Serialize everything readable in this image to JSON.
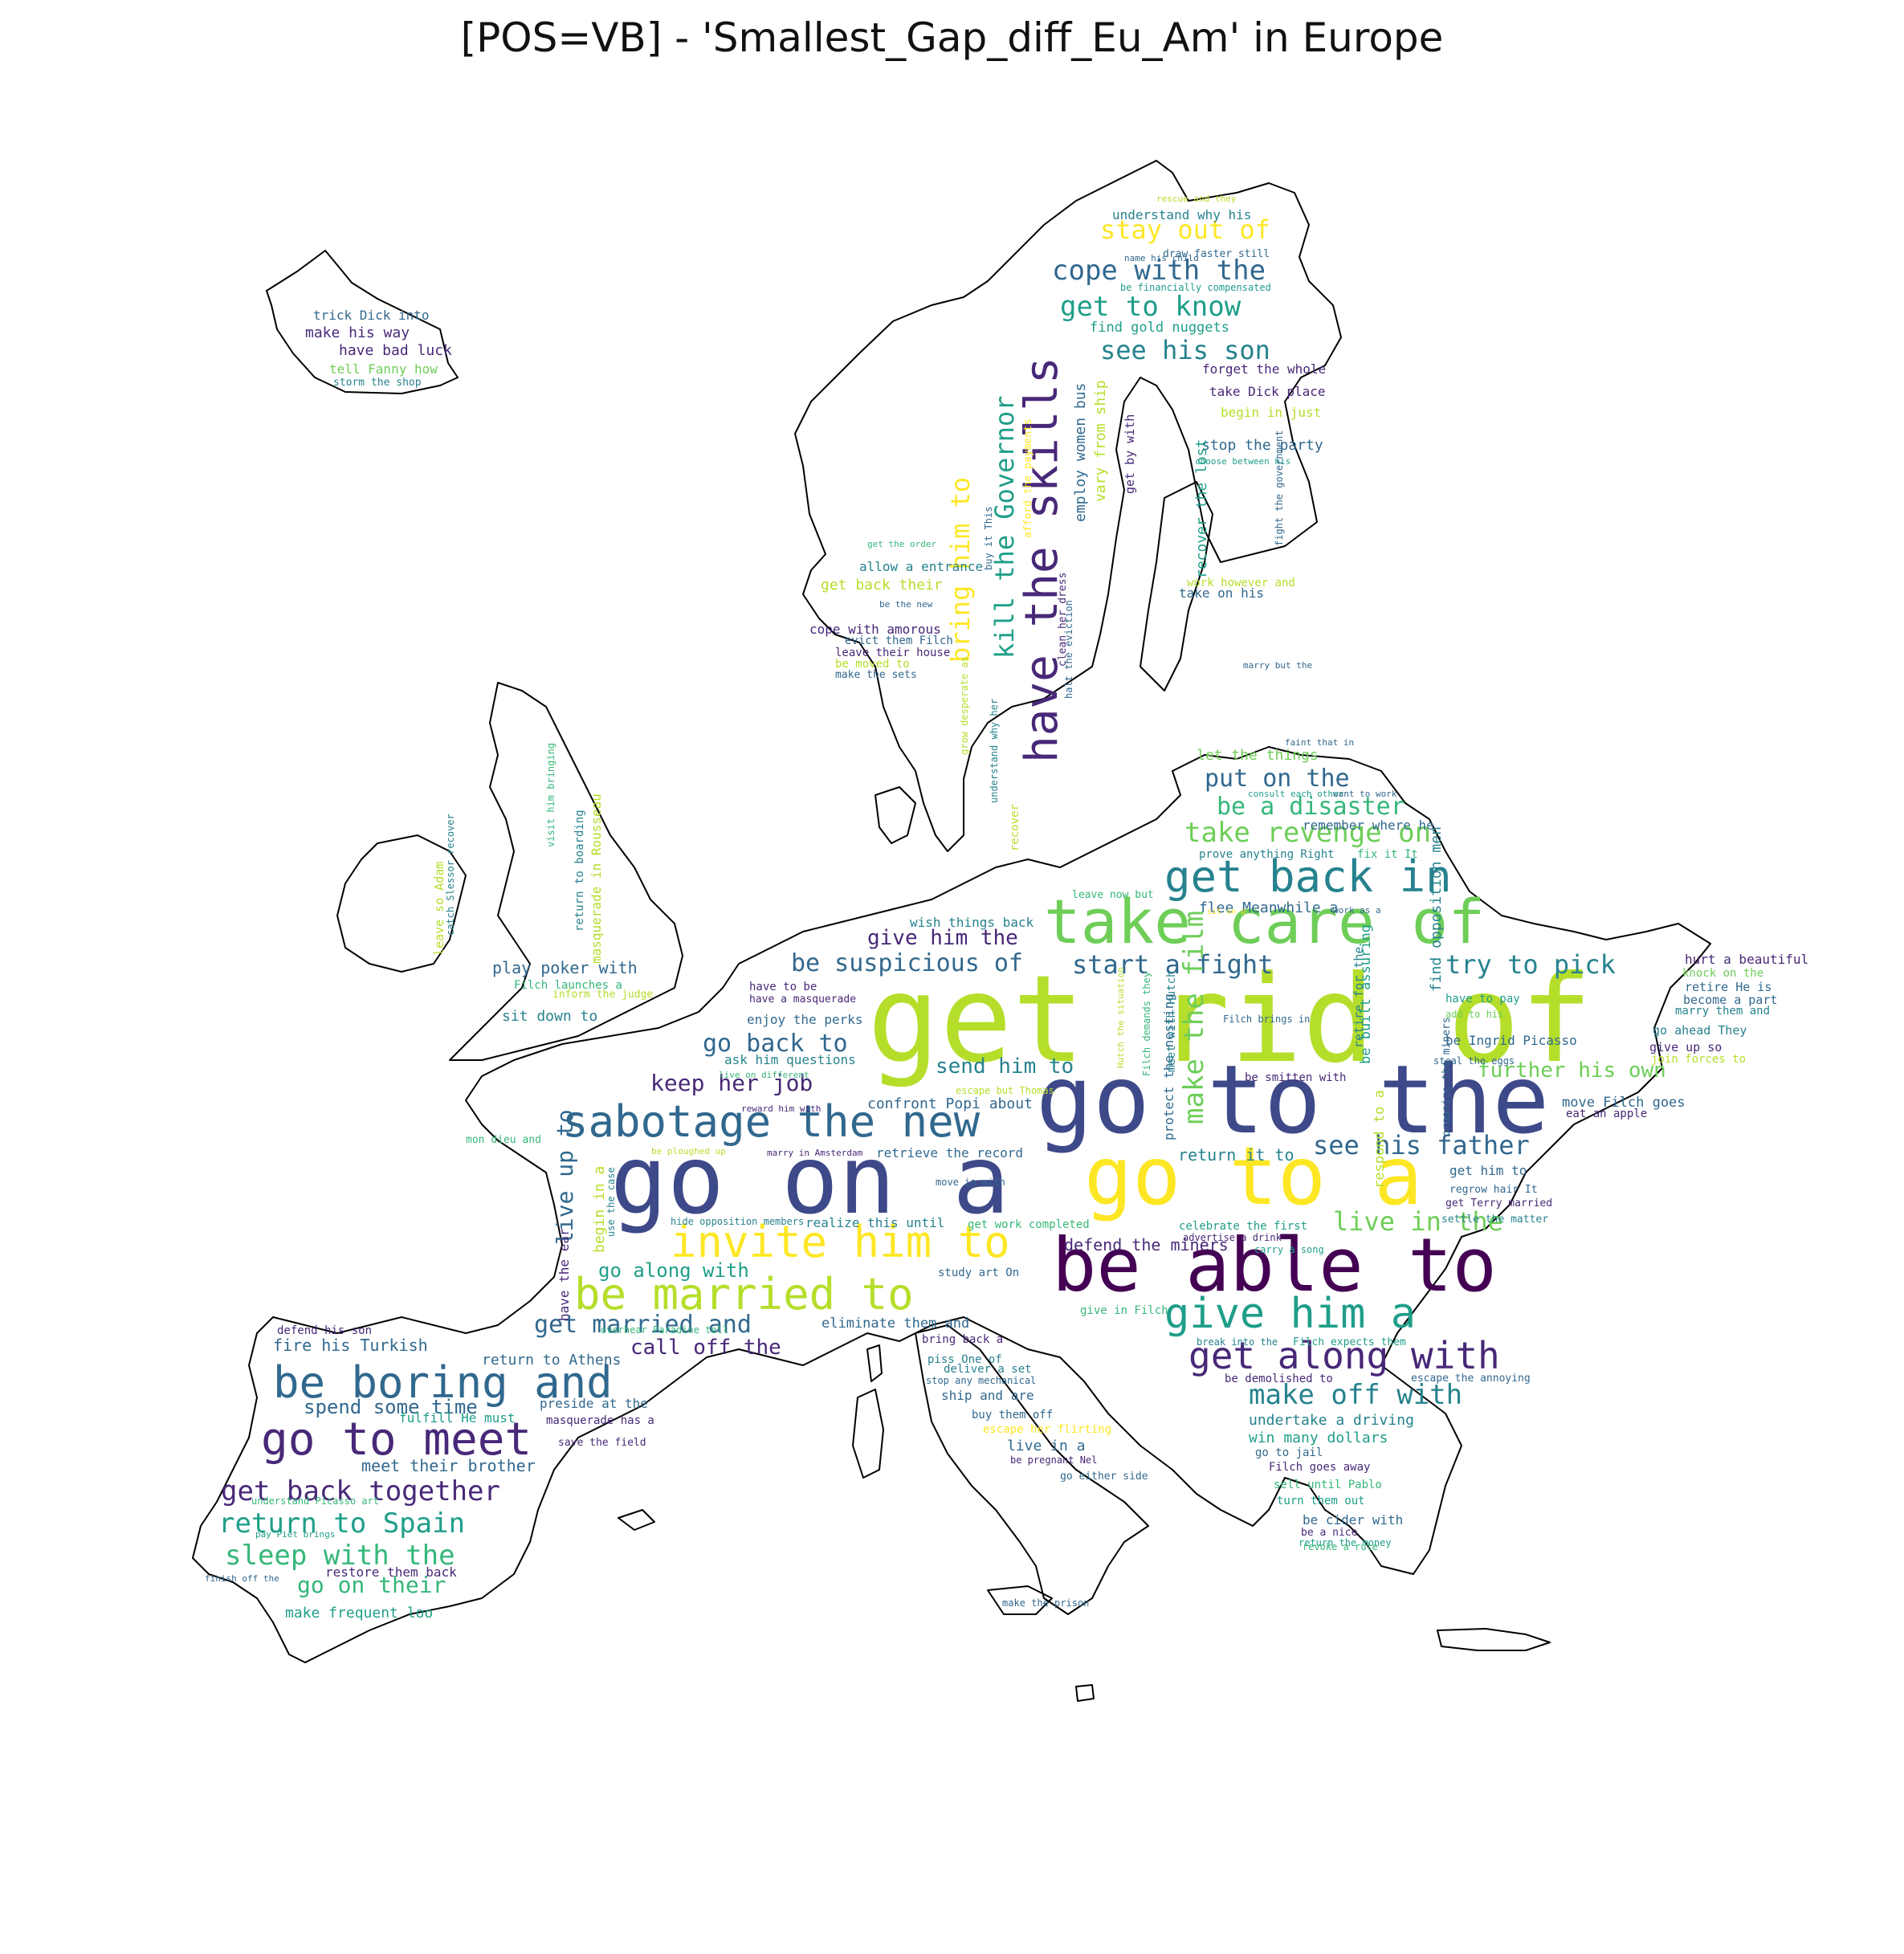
{
  "title": "[POS=VB] - 'Smallest_Gap_diff_Eu_Am' in Europe",
  "palette": [
    "#440154",
    "#482878",
    "#3e4989",
    "#31688e",
    "#26828e",
    "#1f9e89",
    "#35b779",
    "#6ece58",
    "#b5de2b",
    "#fde725"
  ],
  "words": [
    {
      "t": "get rid of",
      "c": "#b5de2b",
      "big": true
    },
    {
      "t": "go to the",
      "c": "#3e4989",
      "big": true
    },
    {
      "t": "go on a",
      "c": "#3e4989",
      "big": true
    },
    {
      "t": "go to a",
      "c": "#fde725",
      "big": true
    },
    {
      "t": "be able to",
      "c": "#440154",
      "big": true
    },
    {
      "t": "take care of",
      "c": "#6ece58"
    },
    {
      "t": "have the skills",
      "c": "#482878"
    },
    {
      "t": "get back in",
      "c": "#26828e"
    },
    {
      "t": "sabotage the new",
      "c": "#31688e"
    },
    {
      "t": "invite him to",
      "c": "#fde725"
    },
    {
      "t": "be married to",
      "c": "#b5de2b"
    },
    {
      "t": "give him a",
      "c": "#1f9e89"
    },
    {
      "t": "get along with",
      "c": "#482878"
    },
    {
      "t": "be boring and",
      "c": "#31688e"
    },
    {
      "t": "go to meet",
      "c": "#482878"
    },
    {
      "t": "kill the Governor",
      "c": "#1f9e89"
    },
    {
      "t": "bring him to",
      "c": "#fde725"
    },
    {
      "t": "cope with the",
      "c": "#31688e"
    },
    {
      "t": "get to know",
      "c": "#1f9e89"
    },
    {
      "t": "stay out of",
      "c": "#fde725"
    },
    {
      "t": "see his son",
      "c": "#26828e"
    },
    {
      "t": "take revenge on",
      "c": "#6ece58"
    },
    {
      "t": "be a disaster",
      "c": "#35b779"
    },
    {
      "t": "put on the",
      "c": "#31688e"
    },
    {
      "t": "try to pick",
      "c": "#26828e"
    },
    {
      "t": "start a fight",
      "c": "#31688e"
    },
    {
      "t": "be suspicious of",
      "c": "#31688e"
    },
    {
      "t": "give him the",
      "c": "#482878"
    },
    {
      "t": "go back to",
      "c": "#31688e"
    },
    {
      "t": "keep her job",
      "c": "#482878"
    },
    {
      "t": "send him to",
      "c": "#26828e"
    },
    {
      "t": "make the film",
      "c": "#6ece58"
    },
    {
      "t": "see his father",
      "c": "#31688e"
    },
    {
      "t": "live in the",
      "c": "#6ece58"
    },
    {
      "t": "further his own",
      "c": "#6ece58"
    },
    {
      "t": "make off with",
      "c": "#26828e"
    },
    {
      "t": "get married and",
      "c": "#31688e"
    },
    {
      "t": "call off the",
      "c": "#482878"
    },
    {
      "t": "go along with",
      "c": "#1f9e89"
    },
    {
      "t": "live up to",
      "c": "#31688e"
    },
    {
      "t": "get back together",
      "c": "#482878"
    },
    {
      "t": "return to Spain",
      "c": "#1f9e89"
    },
    {
      "t": "sleep with the",
      "c": "#35b779"
    },
    {
      "t": "go on their",
      "c": "#35b779"
    },
    {
      "t": "spend some time",
      "c": "#31688e"
    },
    {
      "t": "meet their brother",
      "c": "#31688e"
    },
    {
      "t": "make frequent loo",
      "c": "#1f9e89"
    },
    {
      "t": "restore them back",
      "c": "#482878"
    },
    {
      "t": "fire his Turkish",
      "c": "#31688e"
    },
    {
      "t": "defend his son",
      "c": "#482878"
    },
    {
      "t": "return to Athens",
      "c": "#31688e"
    },
    {
      "t": "preside at the",
      "c": "#31688e"
    },
    {
      "t": "fulfill He must",
      "c": "#1f9e89"
    },
    {
      "t": "masquerade has a",
      "c": "#482878"
    },
    {
      "t": "save the field",
      "c": "#482878"
    },
    {
      "t": "understand Picasso art",
      "c": "#35b779"
    },
    {
      "t": "pay Piet brings",
      "c": "#1f9e89"
    },
    {
      "t": "finish off the",
      "c": "#31688e"
    },
    {
      "t": "play poker with",
      "c": "#31688e"
    },
    {
      "t": "Filch launches a",
      "c": "#35b779"
    },
    {
      "t": "inform the judge",
      "c": "#b5de2b"
    },
    {
      "t": "sit down to",
      "c": "#26828e"
    },
    {
      "t": "trick Dick into",
      "c": "#31688e"
    },
    {
      "t": "make his way",
      "c": "#482878"
    },
    {
      "t": "have bad luck",
      "c": "#482878"
    },
    {
      "t": "tell Fanny how",
      "c": "#6ece58"
    },
    {
      "t": "storm the shop",
      "c": "#26828e"
    },
    {
      "t": "rescue and they",
      "c": "#b5de2b"
    },
    {
      "t": "understand why his",
      "c": "#26828e"
    },
    {
      "t": "name his child",
      "c": "#31688e"
    },
    {
      "t": "draw faster still",
      "c": "#31688e"
    },
    {
      "t": "be financially compensated",
      "c": "#1f9e89"
    },
    {
      "t": "find gold nuggets",
      "c": "#1f9e89"
    },
    {
      "t": "forget the whole",
      "c": "#482878"
    },
    {
      "t": "take Dick place",
      "c": "#482878"
    },
    {
      "t": "begin in just",
      "c": "#b5de2b"
    },
    {
      "t": "stop the party",
      "c": "#31688e"
    },
    {
      "t": "choose between his",
      "c": "#1f9e89"
    },
    {
      "t": "get the order",
      "c": "#35b779"
    },
    {
      "t": "allow a entrance",
      "c": "#26828e"
    },
    {
      "t": "get back their",
      "c": "#b5de2b"
    },
    {
      "t": "be the new",
      "c": "#31688e"
    },
    {
      "t": "cope with amorous",
      "c": "#482878"
    },
    {
      "t": "evict them Filch",
      "c": "#31688e"
    },
    {
      "t": "leave their house",
      "c": "#482878"
    },
    {
      "t": "be moved to",
      "c": "#b5de2b"
    },
    {
      "t": "make the sets",
      "c": "#31688e"
    },
    {
      "t": "work however and",
      "c": "#b5de2b"
    },
    {
      "t": "take on his",
      "c": "#31688e"
    },
    {
      "t": "marry but the",
      "c": "#31688e"
    },
    {
      "t": "faint that in",
      "c": "#31688e"
    },
    {
      "t": "let the things",
      "c": "#6ece58"
    },
    {
      "t": "consult each other",
      "c": "#1f9e89"
    },
    {
      "t": "want to work",
      "c": "#31688e"
    },
    {
      "t": "remember where he",
      "c": "#31688e"
    },
    {
      "t": "prove anything Right",
      "c": "#26828e"
    },
    {
      "t": "fix it It",
      "c": "#35b779"
    },
    {
      "t": "leave now but",
      "c": "#35b779"
    },
    {
      "t": "flee Meanwhile a",
      "c": "#31688e"
    },
    {
      "t": "work as a",
      "c": "#31688e"
    },
    {
      "t": "sit on a",
      "c": "#fde725"
    },
    {
      "t": "wish things back",
      "c": "#26828e"
    },
    {
      "t": "have to be",
      "c": "#482878"
    },
    {
      "t": "have a masquerade",
      "c": "#482878"
    },
    {
      "t": "enjoy the perks",
      "c": "#31688e"
    },
    {
      "t": "ask him questions",
      "c": "#26828e"
    },
    {
      "t": "live on different",
      "c": "#35b779"
    },
    {
      "t": "escape but Thomas",
      "c": "#b5de2b"
    },
    {
      "t": "reward him with",
      "c": "#482878"
    },
    {
      "t": "confront Popi about",
      "c": "#31688e"
    },
    {
      "t": "mon dieu and",
      "c": "#35b779"
    },
    {
      "t": "be ploughed up",
      "c": "#b5de2b"
    },
    {
      "t": "marry in Amsterdam",
      "c": "#482878"
    },
    {
      "t": "retrieve the record",
      "c": "#31688e"
    },
    {
      "t": "move in with",
      "c": "#31688e"
    },
    {
      "t": "hide opposition members",
      "c": "#26828e"
    },
    {
      "t": "realize this until",
      "c": "#26828e"
    },
    {
      "t": "get work completed",
      "c": "#35b779"
    },
    {
      "t": "defend the miners",
      "c": "#482878"
    },
    {
      "t": "study art On",
      "c": "#31688e"
    },
    {
      "t": "eliminate them and",
      "c": "#31688e"
    },
    {
      "t": "bring back a",
      "c": "#482878"
    },
    {
      "t": "give in Filch",
      "c": "#35b779"
    },
    {
      "t": "piss One of",
      "c": "#26828e"
    },
    {
      "t": "deliver a set",
      "c": "#26828e"
    },
    {
      "t": "stop any mechanical",
      "c": "#31688e"
    },
    {
      "t": "ship and are",
      "c": "#31688e"
    },
    {
      "t": "buy them off",
      "c": "#31688e"
    },
    {
      "t": "escape her flirting",
      "c": "#fde725"
    },
    {
      "t": "live in a",
      "c": "#31688e"
    },
    {
      "t": "be pregnant Nel",
      "c": "#482878"
    },
    {
      "t": "go either side",
      "c": "#31688e"
    },
    {
      "t": "make the prison",
      "c": "#31688e"
    },
    {
      "t": "break into the",
      "c": "#26828e"
    },
    {
      "t": "Filch expects them",
      "c": "#1f9e89"
    },
    {
      "t": "be demolished to",
      "c": "#482878"
    },
    {
      "t": "escape the annoying",
      "c": "#31688e"
    },
    {
      "t": "undertake a driving",
      "c": "#26828e"
    },
    {
      "t": "win many dollars",
      "c": "#1f9e89"
    },
    {
      "t": "go to jail",
      "c": "#31688e"
    },
    {
      "t": "Filch goes away",
      "c": "#482878"
    },
    {
      "t": "sell until Pablo",
      "c": "#35b779"
    },
    {
      "t": "turn them out",
      "c": "#1f9e89"
    },
    {
      "t": "be cider with",
      "c": "#31688e"
    },
    {
      "t": "be a nice",
      "c": "#482878"
    },
    {
      "t": "return the money",
      "c": "#1f9e89"
    },
    {
      "t": "revoke a rule",
      "c": "#35b779"
    },
    {
      "t": "return it to",
      "c": "#26828e"
    },
    {
      "t": "get him to",
      "c": "#31688e"
    },
    {
      "t": "regrow hair It",
      "c": "#31688e"
    },
    {
      "t": "get Terry married",
      "c": "#482878"
    },
    {
      "t": "settle the matter",
      "c": "#26828e"
    },
    {
      "t": "celebrate the first",
      "c": "#1f9e89"
    },
    {
      "t": "advertise a drink",
      "c": "#482878"
    },
    {
      "t": "carry a song",
      "c": "#1f9e89"
    },
    {
      "t": "hurt a beautiful",
      "c": "#482878"
    },
    {
      "t": "knock on the",
      "c": "#6ece58"
    },
    {
      "t": "retire He is",
      "c": "#31688e"
    },
    {
      "t": "become a part",
      "c": "#31688e"
    },
    {
      "t": "marry them and",
      "c": "#26828e"
    },
    {
      "t": "go ahead They",
      "c": "#26828e"
    },
    {
      "t": "give up so",
      "c": "#482878"
    },
    {
      "t": "join forces to",
      "c": "#b5de2b"
    },
    {
      "t": "move Filch goes",
      "c": "#31688e"
    },
    {
      "t": "eat an apple",
      "c": "#482878"
    },
    {
      "t": "have to pay",
      "c": "#1f9e89"
    },
    {
      "t": "add to his",
      "c": "#6ece58"
    },
    {
      "t": "be Ingrid Picasso",
      "c": "#31688e"
    },
    {
      "t": "steal the eggs",
      "c": "#31688e"
    },
    {
      "t": "Filch brings in",
      "c": "#31688e"
    },
    {
      "t": "be smitten with",
      "c": "#482878"
    },
    {
      "t": "find opposition men",
      "c": "#26828e"
    },
    {
      "t": "retire for the",
      "c": "#26828e"
    },
    {
      "t": "be built assuring",
      "c": "#1f9e89"
    },
    {
      "t": "respond to a",
      "c": "#b5de2b"
    },
    {
      "t": "organize the miners",
      "c": "#31688e"
    },
    {
      "t": "protect the nesting",
      "c": "#31688e"
    },
    {
      "t": "Filch demands they",
      "c": "#35b779"
    },
    {
      "t": "meet with Hutch",
      "c": "#26828e"
    },
    {
      "t": "Hutch the situation",
      "c": "#b5de2b"
    },
    {
      "t": "overhear Paradine tell",
      "c": "#35b779"
    },
    {
      "t": "have the ear",
      "c": "#482878"
    },
    {
      "t": "begin in a",
      "c": "#b5de2b"
    },
    {
      "t": "use the case",
      "c": "#26828e"
    },
    {
      "t": "leave so Adam",
      "c": "#b5de2b"
    },
    {
      "t": "catch Slessor recover",
      "c": "#26828e"
    },
    {
      "t": "visit him bringing",
      "c": "#35b779"
    },
    {
      "t": "return to boarding",
      "c": "#26828e"
    },
    {
      "t": "masquerade in Rousseau",
      "c": "#b5de2b"
    },
    {
      "t": "buy it This",
      "c": "#31688e"
    },
    {
      "t": "afford the payments",
      "c": "#fde725"
    },
    {
      "t": "employ women bus",
      "c": "#31688e"
    },
    {
      "t": "vary from ship",
      "c": "#b5de2b"
    },
    {
      "t": "get by with",
      "c": "#482878"
    },
    {
      "t": "recover the lost",
      "c": "#1f9e89"
    },
    {
      "t": "fight the government",
      "c": "#31688e"
    },
    {
      "t": "halt the eviction",
      "c": "#31688e"
    },
    {
      "t": "clean her dress",
      "c": "#482878"
    },
    {
      "t": "grow desperate as",
      "c": "#b5de2b"
    },
    {
      "t": "understand why her",
      "c": "#26828e"
    },
    {
      "t": "recover",
      "c": "#b5de2b"
    }
  ]
}
